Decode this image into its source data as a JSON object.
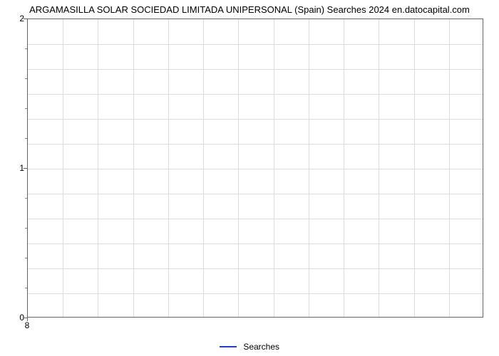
{
  "chart": {
    "type": "line",
    "title": "ARGAMASILLA SOLAR SOCIEDAD LIMITADA UNIPERSONAL (Spain) Searches 2024 en.datocapital.com",
    "title_fontsize": 13,
    "title_color": "#000000",
    "background_color": "#ffffff",
    "plot_border_color": "#666666",
    "grid_color": "#dddddd",
    "x_values": [
      8
    ],
    "y_values": [
      0
    ],
    "series_color": "#2040c0",
    "series_label": "Searches",
    "ylim": [
      0,
      2
    ],
    "y_ticks": [
      0,
      1,
      2
    ],
    "y_minor_divisions": 5,
    "xlim": [
      8,
      8
    ],
    "x_ticks": [
      8
    ],
    "x_label": "8",
    "grid_vertical_count": 13,
    "grid_horizontal_count": 12,
    "label_fontsize": 12,
    "legend_label": "Searches"
  }
}
